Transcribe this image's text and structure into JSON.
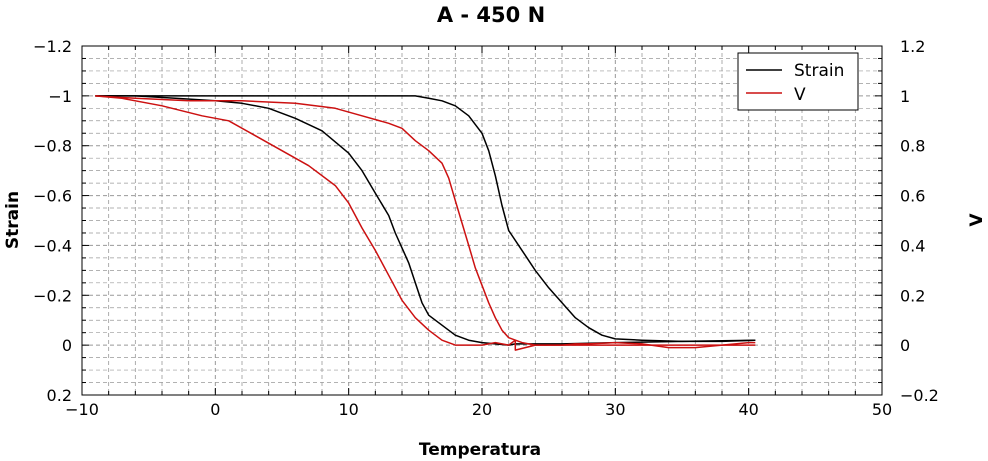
{
  "chart_data": {
    "type": "line",
    "title": "A  -  450 N",
    "xlabel": "Temperatura",
    "ylabel": "Strain",
    "y2label": "V",
    "xlim": [
      -10,
      50
    ],
    "ylim": [
      -1.2,
      0.2
    ],
    "y_inverted": true,
    "y2lim": [
      1.2,
      -0.2
    ],
    "xticks": [
      "−10",
      "0",
      "10",
      "20",
      "30",
      "40",
      "50"
    ],
    "yticks": [
      "−1.2",
      "−1",
      "−0.8",
      "−0.6",
      "−0.4",
      "−0.2",
      "0",
      "0.2"
    ],
    "y2ticks": [
      "1.2",
      "1",
      "0.8",
      "0.6",
      "0.4",
      "0.2",
      "0",
      "−0.2"
    ],
    "grid": true,
    "legend_position": "top-right",
    "legend": [
      "Strain",
      "V"
    ],
    "colors": {
      "strain": "#000000",
      "v": "#cc1111",
      "grid": "#999999"
    },
    "series": [
      {
        "name": "Strain",
        "color": "#000000",
        "x": [
          -9,
          -6,
          -2,
          2,
          6,
          10,
          13,
          15,
          16,
          17,
          18,
          19,
          20,
          20.5,
          21,
          21.5,
          22,
          23,
          24,
          25,
          26,
          27,
          28,
          29,
          30,
          32,
          35,
          38,
          40.5
        ],
        "y": [
          -1.0,
          -1.0,
          -1.0,
          -1.0,
          -1.0,
          -1.0,
          -1.0,
          -1.0,
          -0.99,
          -0.98,
          -0.96,
          -0.92,
          -0.85,
          -0.78,
          -0.68,
          -0.56,
          -0.46,
          -0.38,
          -0.3,
          -0.23,
          -0.17,
          -0.11,
          -0.07,
          -0.04,
          -0.025,
          -0.02,
          -0.015,
          -0.015,
          -0.02
        ]
      },
      {
        "name": "Strain",
        "color": "#000000",
        "x": [
          40.5,
          35,
          30,
          26,
          24,
          22.5,
          22,
          21,
          20,
          19,
          18,
          17,
          16,
          15.5,
          15,
          14.5,
          14,
          13.5,
          13,
          12,
          11,
          10,
          8,
          6,
          4,
          2,
          0,
          -3,
          -6,
          -9
        ],
        "y": [
          -0.02,
          -0.015,
          -0.01,
          -0.005,
          -0.005,
          -0.005,
          0.0,
          -0.005,
          -0.01,
          -0.02,
          -0.04,
          -0.08,
          -0.12,
          -0.17,
          -0.25,
          -0.33,
          -0.39,
          -0.45,
          -0.52,
          -0.61,
          -0.7,
          -0.77,
          -0.86,
          -0.91,
          -0.95,
          -0.97,
          -0.98,
          -0.99,
          -1.0,
          -1.0
        ]
      },
      {
        "name": "V",
        "color": "#cc1111",
        "x": [
          -9,
          -6,
          -2,
          2,
          6,
          9,
          11,
          13,
          14,
          15,
          16,
          17,
          17.5,
          18,
          18.5,
          19,
          19.5,
          20,
          20.5,
          21,
          21.5,
          22,
          23,
          24,
          25,
          26,
          27,
          28,
          30,
          32,
          34,
          36,
          38,
          40,
          40.5
        ],
        "y": [
          -1.0,
          -0.99,
          -0.98,
          -0.98,
          -0.97,
          -0.95,
          -0.92,
          -0.89,
          -0.87,
          -0.82,
          -0.78,
          -0.73,
          -0.67,
          -0.58,
          -0.49,
          -0.4,
          -0.31,
          -0.24,
          -0.17,
          -0.11,
          -0.06,
          -0.03,
          -0.01,
          0.0,
          0.0,
          0.0,
          -0.005,
          -0.005,
          -0.01,
          -0.005,
          0.01,
          0.01,
          0.0,
          -0.01,
          -0.01
        ]
      },
      {
        "name": "V",
        "color": "#cc1111",
        "x": [
          40.5,
          35,
          30,
          26,
          24,
          22.5,
          22.5,
          22,
          21,
          20,
          19,
          18,
          17,
          16,
          15,
          14,
          13,
          12,
          11,
          10,
          9,
          7,
          5,
          3,
          1,
          -1,
          -4,
          -7,
          -9
        ],
        "y": [
          0.0,
          0.0,
          0.0,
          0.0,
          0.0,
          0.02,
          -0.02,
          0.0,
          -0.01,
          0.0,
          0.0,
          0.0,
          -0.02,
          -0.06,
          -0.11,
          -0.18,
          -0.28,
          -0.38,
          -0.47,
          -0.57,
          -0.64,
          -0.72,
          -0.78,
          -0.84,
          -0.9,
          -0.92,
          -0.96,
          -0.99,
          -1.0
        ]
      }
    ]
  }
}
